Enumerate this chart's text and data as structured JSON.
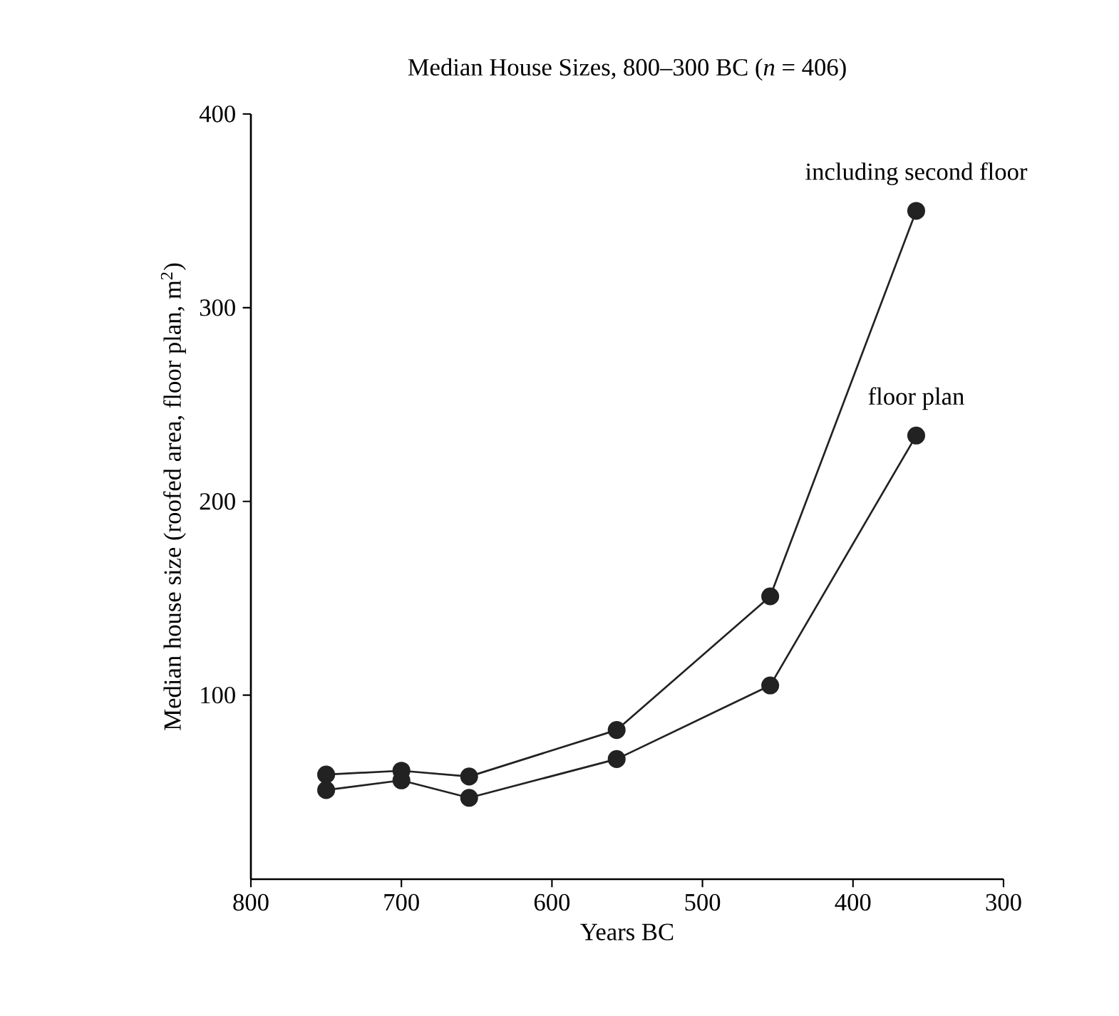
{
  "chart_data": {
    "type": "line",
    "title": "Median House Sizes, 800–300 BC (*n* = 406)",
    "xlabel": "Years BC",
    "ylabel": "Median house size (roofed area, floor plan, m$^{2}$)",
    "x": [
      750,
      700,
      655,
      557,
      455,
      358
    ],
    "series": [
      {
        "name": "including second floor",
        "color": "#222222",
        "values": [
          59,
          61,
          58,
          82,
          151,
          350
        ]
      },
      {
        "name": "floor plan",
        "color": "#222222",
        "values": [
          51,
          56,
          47,
          67,
          105,
          234
        ]
      }
    ],
    "xlim": [
      800,
      300
    ],
    "xticks": [
      800,
      700,
      600,
      500,
      400,
      300
    ],
    "ylim": [
      5,
      400
    ],
    "yticks": [
      100,
      200,
      300,
      400
    ],
    "marker": "circle",
    "line_style": "solid",
    "grid": false,
    "legend": false
  }
}
